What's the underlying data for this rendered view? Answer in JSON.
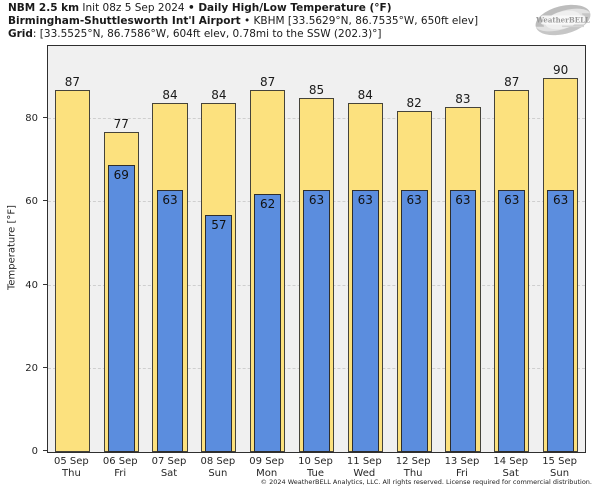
{
  "header": {
    "model": "NBM 2.5 km",
    "init_info": " Init 08z 5 Sep 2024 ",
    "bullet": "• ",
    "product_title": "Daily High/Low Temperature (°F)",
    "station": "Birmingham-Shuttlesworth Int'l Airport",
    "station_bullet": " • ",
    "station_info": "KBHM [33.5629°N, 86.7535°W, 650ft elev]",
    "grid_label": "Grid",
    "grid_info": ": [33.5525°N, 86.7586°W, 604ft elev, 0.78mi to the SSW (202.3)°]"
  },
  "logo": {
    "text": "WeatherBELL"
  },
  "chart_data": {
    "type": "bar",
    "title": "NBM 2.5 km Daily High/Low Temperature (°F)",
    "ylabel": "Temperature [°F]",
    "ylim": [
      0,
      97.6
    ],
    "yticks": [
      0,
      20,
      40,
      60,
      80
    ],
    "grid": "horizontal dashed at yticks, plot background light gray",
    "legend_position": "none",
    "categories": [
      {
        "date": "05 Sep",
        "day": "Thu"
      },
      {
        "date": "06 Sep",
        "day": "Fri"
      },
      {
        "date": "07 Sep",
        "day": "Sat"
      },
      {
        "date": "08 Sep",
        "day": "Sun"
      },
      {
        "date": "09 Sep",
        "day": "Mon"
      },
      {
        "date": "10 Sep",
        "day": "Tue"
      },
      {
        "date": "11 Sep",
        "day": "Wed"
      },
      {
        "date": "12 Sep",
        "day": "Thu"
      },
      {
        "date": "13 Sep",
        "day": "Fri"
      },
      {
        "date": "14 Sep",
        "day": "Sat"
      },
      {
        "date": "15 Sep",
        "day": "Sun"
      }
    ],
    "series": [
      {
        "name": "Daily High",
        "color": "#fce17e",
        "values": [
          87,
          77,
          84,
          84,
          87,
          85,
          84,
          82,
          83,
          87,
          90
        ]
      },
      {
        "name": "Daily Low",
        "color": "#5b8dde",
        "values": [
          null,
          69,
          63,
          57,
          62,
          63,
          63,
          63,
          63,
          63,
          63
        ]
      }
    ]
  },
  "colors": {
    "figure_bg": "#ffffff",
    "plot_bg": "#f0f0f0",
    "grid_line": "#cfcfcf",
    "axis_border": "#2f2f2f",
    "high_fill": "#fce17e",
    "low_fill": "#5b8dde",
    "text": "#1a1a1a"
  },
  "footer": {
    "copyright": "© 2024 WeatherBELL Analytics, LLC. All rights reserved. License required for commercial distribution."
  }
}
